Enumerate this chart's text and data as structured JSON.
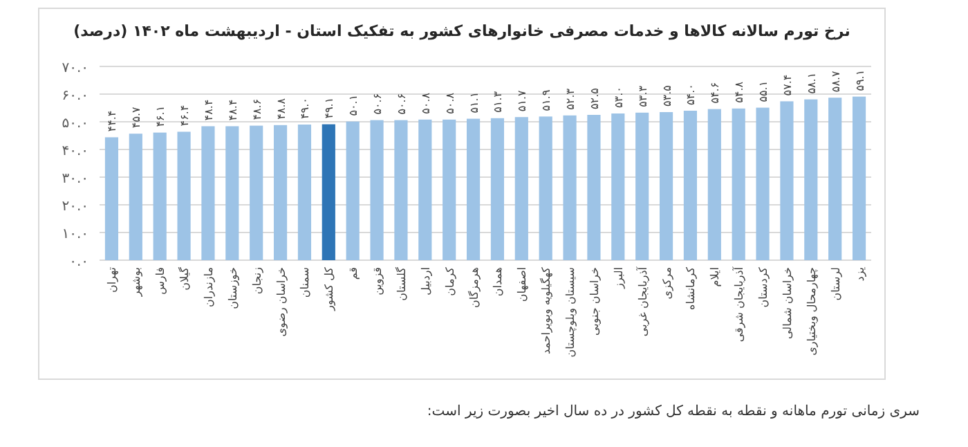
{
  "chart_data": {
    "type": "bar",
    "title": "نرخ تورم سالانه کالاها و خدمات مصرفی خانوارهای کشور به تفکیک استان - اردیبهشت ماه ۱۴۰۲ (درصد)",
    "categories": [
      "تهران",
      "بوشهر",
      "فارس",
      "گیلان",
      "مازندران",
      "خوزستان",
      "زنجان",
      "خراسان رضوی",
      "سمنان",
      "کل کشور",
      "قم",
      "قزوین",
      "گلستان",
      "اردبیل",
      "کرمان",
      "هرمزگان",
      "همدان",
      "اصفهان",
      "کهگیلویه وبویراحمد",
      "سیستان وبلوچستان",
      "خراسان جنوبی",
      "البرز",
      "آذربایجان غربی",
      "مرکزی",
      "کرمانشاه",
      "ایلام",
      "آذربایجان شرقی",
      "کردستان",
      "خراسان شمالی",
      "چهارمحال وبختیاری",
      "لرستان",
      "یزد"
    ],
    "values": [
      44.4,
      45.7,
      46.1,
      46.4,
      48.4,
      48.4,
      48.6,
      48.8,
      49.0,
      49.1,
      50.1,
      50.6,
      50.6,
      50.8,
      50.8,
      51.1,
      51.3,
      51.7,
      51.9,
      52.3,
      52.5,
      53.0,
      53.3,
      53.5,
      54.0,
      54.6,
      54.8,
      55.1,
      57.4,
      58.1,
      58.7,
      59.1
    ],
    "value_labels": [
      "۴۴.۴",
      "۴۵.۷",
      "۴۶.۱",
      "۴۶.۴",
      "۴۸.۴",
      "۴۸.۴",
      "۴۸.۶",
      "۴۸.۸",
      "۴۹.۰",
      "۴۹.۱",
      "۵۰.۱",
      "۵۰.۶",
      "۵۰.۶",
      "۵۰.۸",
      "۵۰.۸",
      "۵۱.۱",
      "۵۱.۳",
      "۵۱.۷",
      "۵۱.۹",
      "۵۲.۳",
      "۵۲.۵",
      "۵۳.۰",
      "۵۳.۳",
      "۵۳.۵",
      "۵۴.۰",
      "۵۴.۶",
      "۵۴.۸",
      "۵۵.۱",
      "۵۷.۴",
      "۵۸.۱",
      "۵۸.۷",
      "۵۹.۱"
    ],
    "colors": [
      "#9dc3e6",
      "#9dc3e6",
      "#9dc3e6",
      "#9dc3e6",
      "#9dc3e6",
      "#9dc3e6",
      "#9dc3e6",
      "#9dc3e6",
      "#9dc3e6",
      "#2e75b6",
      "#9dc3e6",
      "#9dc3e6",
      "#9dc3e6",
      "#9dc3e6",
      "#9dc3e6",
      "#9dc3e6",
      "#9dc3e6",
      "#9dc3e6",
      "#9dc3e6",
      "#9dc3e6",
      "#9dc3e6",
      "#9dc3e6",
      "#9dc3e6",
      "#9dc3e6",
      "#9dc3e6",
      "#9dc3e6",
      "#9dc3e6",
      "#9dc3e6",
      "#9dc3e6",
      "#9dc3e6",
      "#9dc3e6",
      "#9dc3e6"
    ],
    "ylim": [
      0,
      70
    ],
    "yticks": [
      {
        "value": 0,
        "label": "۰.۰"
      },
      {
        "value": 10,
        "label": "۱۰.۰"
      },
      {
        "value": 20,
        "label": "۲۰.۰"
      },
      {
        "value": 30,
        "label": "۳۰.۰"
      },
      {
        "value": 40,
        "label": "۴۰.۰"
      },
      {
        "value": 50,
        "label": "۵۰.۰"
      },
      {
        "value": 60,
        "label": "۶۰.۰"
      },
      {
        "value": 70,
        "label": "۷۰.۰"
      }
    ],
    "grid": "y",
    "annotations": [
      "سری زمانی تورم ماهانه و نقطه به نقطه کل کشور در ده سال اخیر بصورت زیر است:"
    ]
  }
}
